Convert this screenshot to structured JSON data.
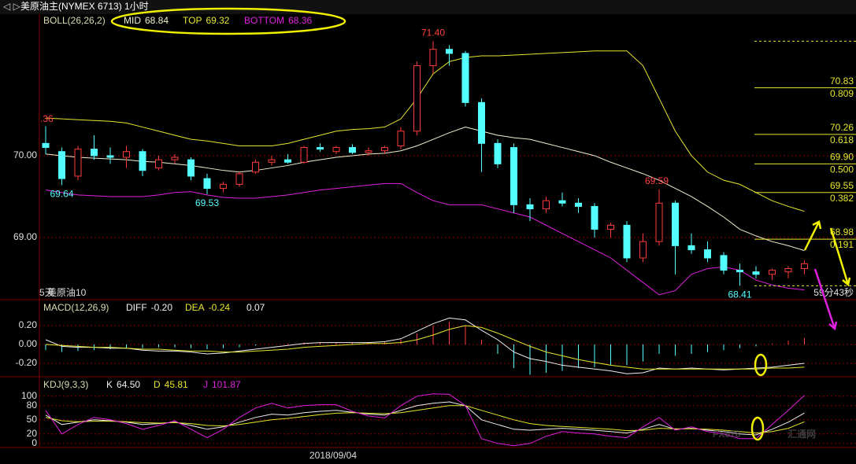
{
  "header": {
    "title": "美原油主(NYMEX 6713)",
    "period": "1小时"
  },
  "chart_data": [
    {
      "type": "candlestick",
      "name": "BOLL(26,26,2)",
      "up_color": "#ff3b3b",
      "down_color": "#54ffff",
      "ylim": [
        68.25,
        71.73
      ],
      "yticks": [
        {
          "value": 69,
          "label": "69.00"
        },
        {
          "value": 70,
          "label": "70.00"
        }
      ],
      "candles": [
        [
          70.15,
          70.36,
          70.02,
          70.1
        ],
        [
          70.05,
          70.1,
          69.64,
          69.72
        ],
        [
          69.75,
          70.12,
          69.7,
          70.08
        ],
        [
          70.08,
          70.25,
          69.95,
          70.0
        ],
        [
          70.0,
          70.1,
          69.9,
          69.98
        ],
        [
          69.98,
          70.12,
          69.85,
          70.05
        ],
        [
          70.05,
          70.08,
          69.75,
          69.82
        ],
        [
          69.85,
          70.0,
          69.82,
          69.95
        ],
        [
          69.95,
          70.02,
          69.9,
          69.98
        ],
        [
          69.95,
          69.98,
          69.7,
          69.75
        ],
        [
          69.72,
          69.78,
          69.53,
          69.6
        ],
        [
          69.6,
          69.68,
          69.55,
          69.65
        ],
        [
          69.65,
          69.8,
          69.62,
          69.78
        ],
        [
          69.8,
          69.95,
          69.78,
          69.92
        ],
        [
          69.92,
          70.0,
          69.88,
          69.95
        ],
        [
          69.95,
          70.02,
          69.9,
          69.92
        ],
        [
          69.92,
          70.12,
          69.9,
          70.1
        ],
        [
          70.1,
          70.15,
          70.05,
          70.08
        ],
        [
          70.05,
          70.12,
          70.02,
          70.1
        ],
        [
          70.1,
          70.14,
          70.02,
          70.04
        ],
        [
          70.04,
          70.1,
          70.0,
          70.06
        ],
        [
          70.06,
          70.12,
          70.02,
          70.1
        ],
        [
          70.12,
          70.35,
          70.08,
          70.3
        ],
        [
          70.3,
          71.15,
          70.25,
          71.1
        ],
        [
          71.1,
          71.4,
          71.0,
          71.3
        ],
        [
          71.3,
          71.35,
          71.1,
          71.25
        ],
        [
          71.25,
          71.28,
          70.6,
          70.65
        ],
        [
          70.65,
          70.7,
          69.8,
          70.15
        ],
        [
          70.15,
          70.2,
          69.85,
          69.9
        ],
        [
          70.1,
          70.15,
          69.3,
          69.4
        ],
        [
          69.4,
          69.48,
          69.2,
          69.35
        ],
        [
          69.35,
          69.5,
          69.3,
          69.45
        ],
        [
          69.45,
          69.55,
          69.38,
          69.42
        ],
        [
          69.42,
          69.48,
          69.3,
          69.38
        ],
        [
          69.38,
          69.42,
          69.0,
          69.1
        ],
        [
          69.1,
          69.18,
          69.0,
          69.15
        ],
        [
          69.15,
          69.2,
          68.7,
          68.75
        ],
        [
          68.75,
          69.05,
          68.7,
          68.95
        ],
        [
          68.95,
          69.59,
          68.9,
          69.42
        ],
        [
          69.42,
          69.45,
          68.55,
          68.9
        ],
        [
          68.9,
          69.05,
          68.8,
          68.85
        ],
        [
          68.85,
          68.95,
          68.7,
          68.75
        ],
        [
          68.78,
          68.82,
          68.55,
          68.6
        ],
        [
          68.6,
          68.68,
          68.41,
          68.58
        ],
        [
          68.58,
          68.65,
          68.5,
          68.55
        ],
        [
          68.55,
          68.62,
          68.48,
          68.6
        ],
        [
          68.58,
          68.65,
          68.5,
          68.62
        ],
        [
          68.62,
          68.72,
          68.55,
          68.68
        ]
      ],
      "series": [
        {
          "name": "MID",
          "color": "#f0f0d0",
          "last_value": 68.84,
          "values": [
            70.02,
            70.0,
            69.98,
            69.97,
            69.96,
            69.95,
            69.93,
            69.92,
            69.9,
            69.88,
            69.85,
            69.82,
            69.8,
            69.82,
            69.85,
            69.88,
            69.92,
            69.95,
            69.98,
            70.0,
            70.02,
            70.03,
            70.06,
            70.12,
            70.2,
            70.28,
            70.35,
            70.3,
            70.25,
            70.22,
            70.2,
            70.15,
            70.1,
            70.05,
            70.0,
            69.92,
            69.85,
            69.78,
            69.7,
            69.6,
            69.5,
            69.38,
            69.25,
            69.1,
            69.02,
            68.95,
            68.9,
            68.84
          ]
        },
        {
          "name": "TOP",
          "color": "#e6e62e",
          "last_value": 69.32,
          "values": [
            70.46,
            70.45,
            70.44,
            70.43,
            70.42,
            70.4,
            70.35,
            70.3,
            70.25,
            70.2,
            70.18,
            70.15,
            70.12,
            70.12,
            70.12,
            70.15,
            70.2,
            70.25,
            70.3,
            70.32,
            70.33,
            70.35,
            70.45,
            70.7,
            71.0,
            71.15,
            71.2,
            71.22,
            71.22,
            71.23,
            71.24,
            71.25,
            71.26,
            71.27,
            71.28,
            71.28,
            71.28,
            71.1,
            70.7,
            70.3,
            70.0,
            69.8,
            69.7,
            69.65,
            69.55,
            69.45,
            69.38,
            69.32
          ]
        },
        {
          "name": "BOTTOM",
          "color": "#e020e0",
          "last_value": 68.36,
          "values": [
            69.58,
            69.55,
            69.52,
            69.51,
            69.5,
            69.5,
            69.5,
            69.52,
            69.55,
            69.56,
            69.52,
            69.49,
            69.48,
            69.48,
            69.5,
            69.52,
            69.55,
            69.58,
            69.6,
            69.62,
            69.64,
            69.66,
            69.66,
            69.55,
            69.45,
            69.4,
            69.4,
            69.4,
            69.35,
            69.3,
            69.25,
            69.15,
            69.05,
            68.95,
            68.85,
            68.75,
            68.6,
            68.45,
            68.3,
            68.35,
            68.55,
            68.62,
            68.64,
            68.6,
            68.48,
            68.42,
            68.38,
            68.36
          ]
        }
      ],
      "annotations": [
        {
          "value": 71.4,
          "label": "71.40",
          "color": "#ff4040"
        },
        {
          "value": 69.64,
          "label": "69.64",
          "color": "#54ffff"
        },
        {
          "value": 69.53,
          "label": "69.53",
          "color": "#54ffff"
        },
        {
          "value": 69.59,
          "label": "69.59",
          "color": "#ff4040"
        },
        {
          "value": 68.41,
          "label": "68.41",
          "color": "#54ffff"
        }
      ],
      "edge_label": ".36",
      "fib_color": "#e6e62e",
      "fib": [
        {
          "price": 70.83,
          "ratio": 0.809
        },
        {
          "price": 70.26,
          "ratio": 0.618
        },
        {
          "price": {
            "value": 69.9,
            "label": "69.90"
          },
          "ratio": {
            "value": 0.5,
            "label": "0.500"
          }
        },
        {
          "price": 69.55,
          "ratio": 0.382
        },
        {
          "price": 68.98,
          "ratio": 0.191
        }
      ],
      "footer": [
        "5天",
        "美原油10"
      ],
      "countdown": "59分43秒",
      "x_label": "2018/09/04"
    },
    {
      "type": "macd",
      "name": "MACD(12,26,9)",
      "ylim": [
        -0.333,
        0.458
      ],
      "yticks": [
        {
          "value": 0.2,
          "label": "0.20"
        },
        {
          "value": 0,
          "label": "0.00"
        },
        {
          "value": -0.2,
          "label": "-0.20"
        }
      ],
      "histogram": {
        "pos_color": "#ff3b3b",
        "neg_color": "#54ffff",
        "last_value": 0.07,
        "values": [
          -0.06,
          -0.08,
          -0.07,
          -0.06,
          -0.05,
          -0.04,
          -0.04,
          -0.03,
          -0.03,
          -0.04,
          -0.05,
          -0.04,
          -0.03,
          -0.01,
          0.0,
          0.01,
          0.02,
          0.02,
          0.02,
          0.02,
          0.02,
          0.03,
          0.05,
          0.12,
          0.2,
          0.24,
          0.2,
          0.05,
          -0.1,
          -0.25,
          -0.32,
          -0.3,
          -0.28,
          -0.25,
          -0.24,
          -0.22,
          -0.22,
          -0.18,
          -0.1,
          -0.12,
          -0.1,
          -0.08,
          -0.06,
          -0.04,
          -0.02,
          0.01,
          0.04,
          0.07
        ]
      },
      "series": [
        {
          "name": "DIFF",
          "color": "#f0f0f0",
          "last_value": {
            "value": -0.2,
            "label": "-0.20"
          },
          "values": [
            0.05,
            -0.02,
            -0.03,
            -0.03,
            -0.04,
            -0.04,
            -0.06,
            -0.07,
            -0.07,
            -0.08,
            -0.1,
            -0.09,
            -0.07,
            -0.05,
            -0.03,
            -0.01,
            0.01,
            0.02,
            0.02,
            0.02,
            0.02,
            0.03,
            0.06,
            0.14,
            0.22,
            0.28,
            0.26,
            0.15,
            0.05,
            -0.08,
            -0.15,
            -0.18,
            -0.22,
            -0.24,
            -0.26,
            -0.28,
            -0.31,
            -0.3,
            -0.25,
            -0.26,
            -0.25,
            -0.26,
            -0.27,
            -0.26,
            -0.25,
            -0.24,
            -0.22,
            -0.2
          ]
        },
        {
          "name": "DEA",
          "color": "#e6e62e",
          "last_value": -0.24,
          "values": [
            0.0,
            -0.01,
            -0.02,
            -0.03,
            -0.03,
            -0.04,
            -0.05,
            -0.05,
            -0.06,
            -0.07,
            -0.07,
            -0.08,
            -0.08,
            -0.07,
            -0.06,
            -0.05,
            -0.03,
            -0.02,
            -0.01,
            0.0,
            0.01,
            0.01,
            0.02,
            0.05,
            0.1,
            0.16,
            0.2,
            0.18,
            0.12,
            0.05,
            -0.02,
            -0.08,
            -0.12,
            -0.16,
            -0.19,
            -0.22,
            -0.24,
            -0.26,
            -0.26,
            -0.26,
            -0.26,
            -0.26,
            -0.26,
            -0.26,
            -0.26,
            -0.25,
            -0.25,
            -0.24
          ]
        }
      ]
    },
    {
      "type": "kdj",
      "name": "KDJ(9,3,3)",
      "ylim": [
        -7,
        138
      ],
      "yticks": [
        100,
        80,
        50,
        20,
        0
      ],
      "series": [
        {
          "name": "K",
          "color": "#f0f0f0",
          "last_value": {
            "value": 64.5,
            "label": "64.50"
          },
          "values": [
            60,
            40,
            45,
            50,
            48,
            45,
            40,
            42,
            45,
            38,
            30,
            35,
            45,
            55,
            62,
            60,
            65,
            68,
            70,
            66,
            62,
            60,
            70,
            80,
            85,
            88,
            80,
            50,
            40,
            30,
            28,
            30,
            32,
            30,
            28,
            25,
            22,
            30,
            40,
            30,
            32,
            28,
            25,
            20,
            18,
            30,
            45,
            64.5
          ]
        },
        {
          "name": "D",
          "color": "#e6e62e",
          "last_value": 45.81,
          "values": [
            55,
            48,
            46,
            47,
            47,
            46,
            44,
            43,
            44,
            42,
            38,
            37,
            40,
            45,
            50,
            53,
            57,
            61,
            64,
            65,
            64,
            63,
            65,
            70,
            75,
            80,
            80,
            70,
            60,
            50,
            42,
            38,
            36,
            34,
            32,
            30,
            27,
            28,
            32,
            31,
            31,
            30,
            28,
            25,
            22,
            25,
            32,
            45.81
          ]
        },
        {
          "name": "J",
          "color": "#e020e0",
          "last_value": 101.87,
          "values": [
            70,
            20,
            40,
            55,
            50,
            42,
            30,
            38,
            48,
            30,
            12,
            30,
            55,
            75,
            85,
            75,
            80,
            82,
            82,
            68,
            58,
            54,
            80,
            100,
            105,
            104,
            80,
            10,
            0,
            -5,
            0,
            15,
            25,
            22,
            20,
            15,
            12,
            35,
            55,
            28,
            35,
            25,
            20,
            10,
            10,
            40,
            70,
            101.87
          ]
        }
      ]
    }
  ],
  "watermark": [
    "FX678",
    "汇通网"
  ]
}
